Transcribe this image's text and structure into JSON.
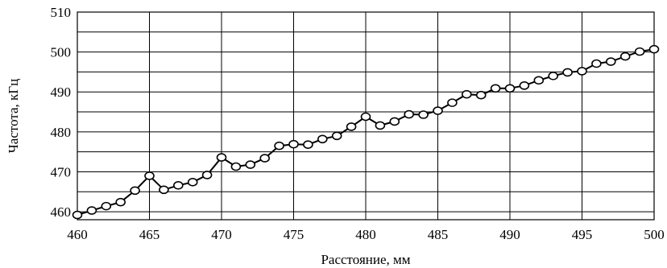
{
  "chart_data": {
    "type": "line",
    "title": "",
    "xlabel": "Расстояние, мм",
    "ylabel": "Частота, кГц",
    "xlim": [
      460,
      500
    ],
    "ylim": [
      458,
      510
    ],
    "grid": true,
    "x_ticks": [
      "460",
      "465",
      "470",
      "475",
      "480",
      "485",
      "490",
      "495",
      "500"
    ],
    "y_ticks": [
      "460",
      "470",
      "480",
      "490",
      "500",
      "510"
    ],
    "x_minor_grid_step": 5,
    "y_grid_step": 5,
    "series": [
      {
        "x": [
          460,
          461,
          462,
          463,
          464,
          465,
          466,
          467,
          468,
          469,
          470,
          471,
          472,
          473,
          474,
          475,
          476,
          477,
          478,
          479,
          480,
          481,
          482,
          483,
          484,
          485,
          486,
          487,
          488,
          489,
          490,
          491,
          492,
          493,
          494,
          495,
          496,
          497,
          498,
          499,
          500
        ],
        "values": [
          459.2,
          460.3,
          461.4,
          462.4,
          465.3,
          469.0,
          465.5,
          466.6,
          467.4,
          469.2,
          473.6,
          471.3,
          471.8,
          473.4,
          476.5,
          476.9,
          476.8,
          478.2,
          479.0,
          481.3,
          483.8,
          481.6,
          482.6,
          484.4,
          484.3,
          485.3,
          487.3,
          489.4,
          489.2,
          490.9,
          490.9,
          491.6,
          492.9,
          494.0,
          494.9,
          495.2,
          497.1,
          497.6,
          498.9,
          500.1,
          500.7
        ]
      }
    ]
  }
}
